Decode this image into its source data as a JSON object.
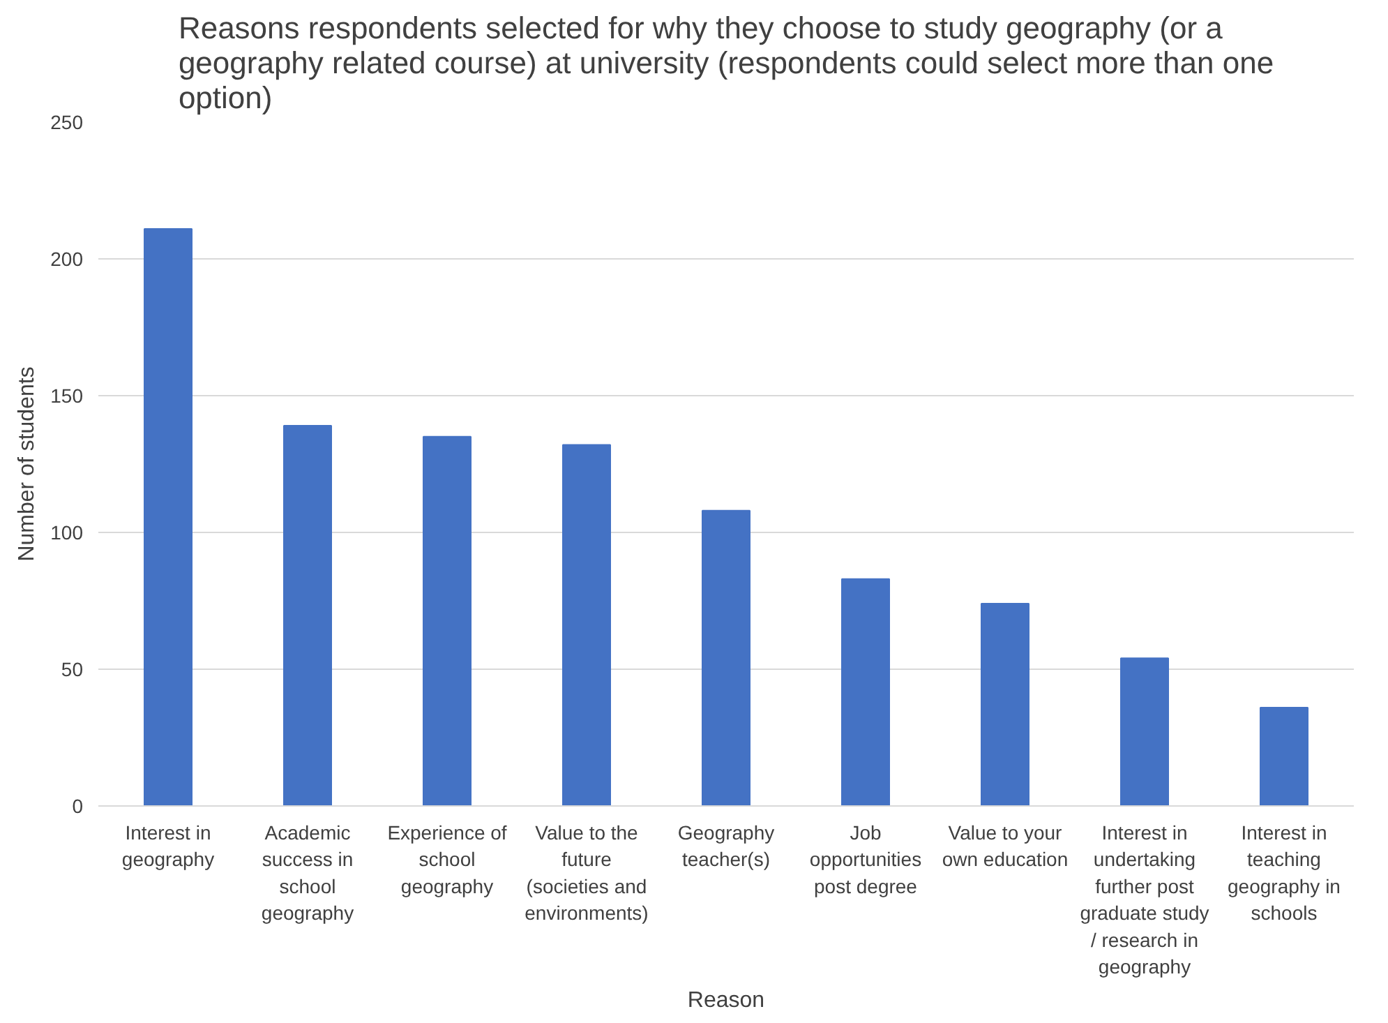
{
  "chart_data": {
    "type": "bar",
    "title": "Reasons respondents selected for why they choose to study geography (or a geography related course) at university (respondents could select more than one option)",
    "xlabel": "Reason",
    "ylabel": "Number of students",
    "categories": [
      "Interest in geography",
      "Academic success in school geography",
      "Experience of school geography",
      "Value to the future (societies and environments)",
      "Geography teacher(s)",
      "Job opportunities post degree",
      "Value to your own education",
      "Interest in undertaking further post graduate study / research in geography",
      "Interest in teaching geography in schools"
    ],
    "values": [
      211,
      139,
      135,
      132,
      108,
      83,
      74,
      54,
      36
    ],
    "color": "#4472c4",
    "ylim": [
      0,
      250
    ],
    "yticks": [
      0,
      50,
      100,
      150,
      200,
      250
    ],
    "grid": "y"
  }
}
